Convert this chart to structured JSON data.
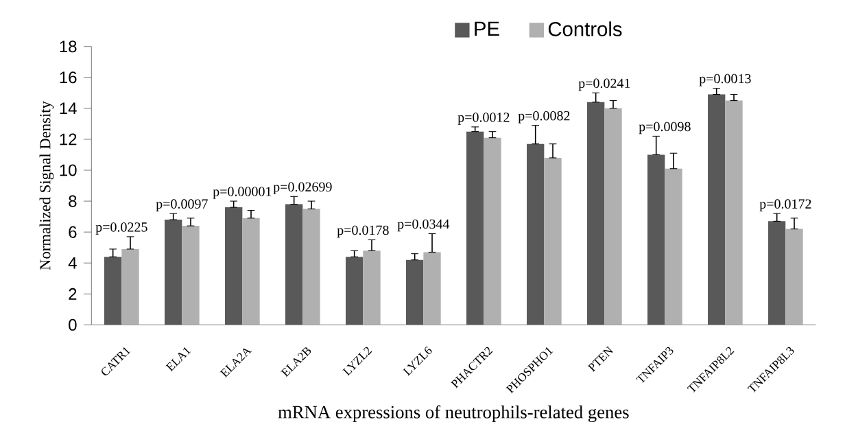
{
  "chart_data": {
    "type": "bar",
    "xlabel": "mRNA expressions of neutrophils-related genes",
    "ylabel": "Normalized Signal Density",
    "categories": [
      "CATR1",
      "ELA1",
      "ELA2A",
      "ELA2B",
      "LYZL2",
      "LYZL6",
      "PHACTR2",
      "PHOSPHO1",
      "PTEN",
      "TNFAIP3",
      "TNFAIP8L2",
      "TNFAIP8L3"
    ],
    "series": [
      {
        "name": "PE",
        "color": "#595959",
        "values": [
          4.4,
          6.8,
          7.6,
          7.8,
          4.4,
          4.2,
          12.5,
          11.7,
          14.4,
          11.0,
          14.9,
          6.7
        ],
        "errors": [
          [
            4.4,
            4.9
          ],
          [
            6.8,
            7.2
          ],
          [
            7.6,
            8.0
          ],
          [
            7.8,
            8.3
          ],
          [
            4.4,
            4.8
          ],
          [
            4.2,
            4.6
          ],
          [
            12.5,
            12.8
          ],
          [
            11.7,
            12.9
          ],
          [
            14.4,
            15.0
          ],
          [
            11.0,
            12.2
          ],
          [
            14.9,
            15.3
          ],
          [
            6.7,
            7.2
          ]
        ]
      },
      {
        "name": "Controls",
        "color": "#b0b0b0",
        "values": [
          4.9,
          6.4,
          6.9,
          7.5,
          4.8,
          4.7,
          12.1,
          10.8,
          14.0,
          10.1,
          14.5,
          6.2
        ],
        "errors": [
          [
            4.9,
            5.7
          ],
          [
            6.4,
            6.9
          ],
          [
            6.9,
            7.4
          ],
          [
            7.5,
            8.0
          ],
          [
            4.8,
            5.5
          ],
          [
            4.7,
            5.9
          ],
          [
            12.1,
            12.5
          ],
          [
            10.8,
            11.7
          ],
          [
            14.0,
            14.5
          ],
          [
            10.1,
            11.1
          ],
          [
            14.5,
            14.9
          ],
          [
            6.2,
            6.9
          ]
        ]
      }
    ],
    "ylim": [
      0,
      18
    ],
    "yticks": [
      0,
      2,
      4,
      6,
      8,
      10,
      12,
      14,
      16,
      18
    ],
    "legend": "top",
    "grid": false,
    "annotations": [
      "p=0.0225",
      "p=0.0097",
      "p=0.00001",
      "p=0.02699",
      "p=0.0178",
      "p=0.0344",
      "p=0.0012",
      "p=0.0082",
      "p=0.0241",
      "p=0.0098",
      "p=0.0013",
      "p=0.0172"
    ]
  }
}
